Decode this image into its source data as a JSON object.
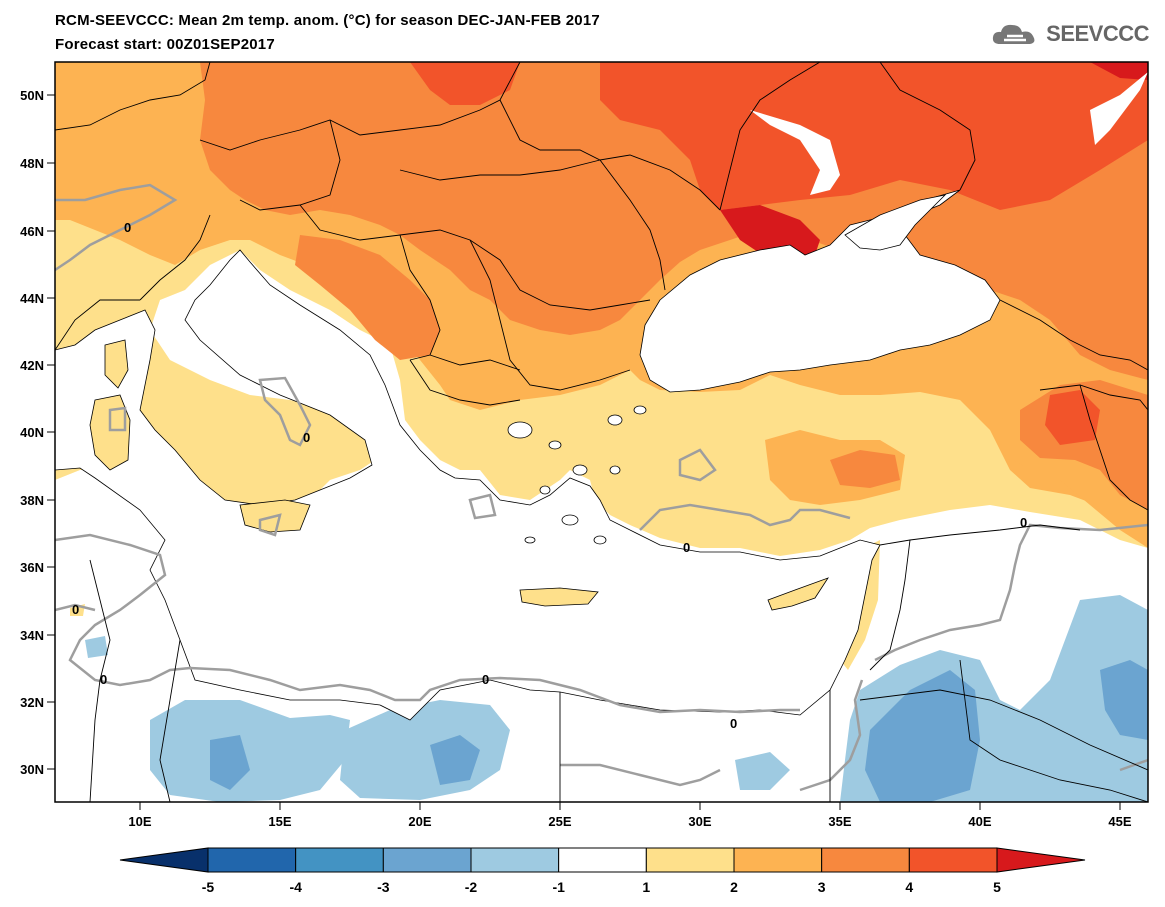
{
  "title": {
    "line1": "RCM-SEEVCCC: Mean 2m temp. anom. (°C) for season DEC-JAN-FEB 2017",
    "line2": "Forecast start: 00Z01SEP2017"
  },
  "logo": {
    "text": "SEEVCCC",
    "icon": "cloud-icon"
  },
  "map": {
    "lon_range": [
      7,
      46
    ],
    "lat_range": [
      29,
      51
    ],
    "lat_ticks": [
      "50N",
      "48N",
      "46N",
      "44N",
      "42N",
      "40N",
      "38N",
      "36N",
      "34N",
      "32N",
      "30N"
    ],
    "lon_ticks": [
      "10E",
      "15E",
      "20E",
      "25E",
      "30E",
      "35E",
      "40E",
      "45E"
    ],
    "contour_label": "0"
  },
  "colorbar": {
    "levels": [
      "-5",
      "-4",
      "-3",
      "-2",
      "-1",
      "1",
      "2",
      "3",
      "4",
      "5"
    ],
    "colors": [
      "#08306b",
      "#2166ac",
      "#4393c3",
      "#6ba4d0",
      "#9ecae1",
      "#ffffff",
      "#fee08b",
      "#fdb352",
      "#f7883e",
      "#f2542a",
      "#d7191c"
    ]
  }
}
